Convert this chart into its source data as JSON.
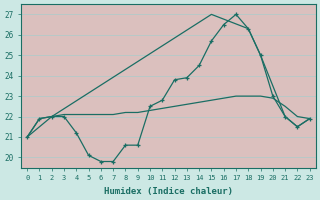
{
  "xlabel": "Humidex (Indice chaleur)",
  "bg_color": "#cce8e4",
  "grid_color_v": "#e8a0a0",
  "grid_color_h": "#b0d8d4",
  "line_color": "#1a6e64",
  "xlim": [
    -0.5,
    23.5
  ],
  "ylim": [
    19.5,
    27.5
  ],
  "yticks": [
    20,
    21,
    22,
    23,
    24,
    25,
    26,
    27
  ],
  "xticks": [
    0,
    1,
    2,
    3,
    4,
    5,
    6,
    7,
    8,
    9,
    10,
    11,
    12,
    13,
    14,
    15,
    16,
    17,
    18,
    19,
    20,
    21,
    22,
    23
  ],
  "line1_x": [
    0,
    1,
    2,
    3,
    4,
    5,
    6,
    7,
    8,
    9,
    10,
    11,
    12,
    13,
    14,
    15,
    16,
    17,
    18,
    19,
    20,
    21,
    22,
    23
  ],
  "line1_y": [
    21.0,
    21.9,
    22.0,
    22.0,
    21.2,
    20.1,
    19.8,
    19.8,
    20.6,
    20.6,
    22.5,
    22.8,
    23.8,
    23.9,
    24.5,
    25.7,
    26.5,
    27.0,
    26.3,
    25.0,
    23.0,
    22.0,
    21.5,
    21.9
  ],
  "line2_x": [
    0,
    1,
    2,
    3,
    4,
    5,
    6,
    7,
    8,
    9,
    10,
    11,
    12,
    13,
    14,
    15,
    16,
    17,
    18,
    19,
    20,
    21,
    22,
    23
  ],
  "line2_y": [
    21.0,
    21.9,
    22.0,
    22.1,
    22.1,
    22.1,
    22.1,
    22.1,
    22.2,
    22.2,
    22.3,
    22.4,
    22.5,
    22.6,
    22.7,
    22.8,
    22.9,
    23.0,
    23.0,
    23.0,
    22.9,
    22.5,
    22.0,
    21.9
  ],
  "line3_x": [
    0,
    2,
    15,
    18,
    19,
    21,
    22,
    23
  ],
  "line3_y": [
    21.0,
    22.0,
    27.0,
    26.3,
    25.0,
    22.0,
    21.5,
    21.9
  ]
}
